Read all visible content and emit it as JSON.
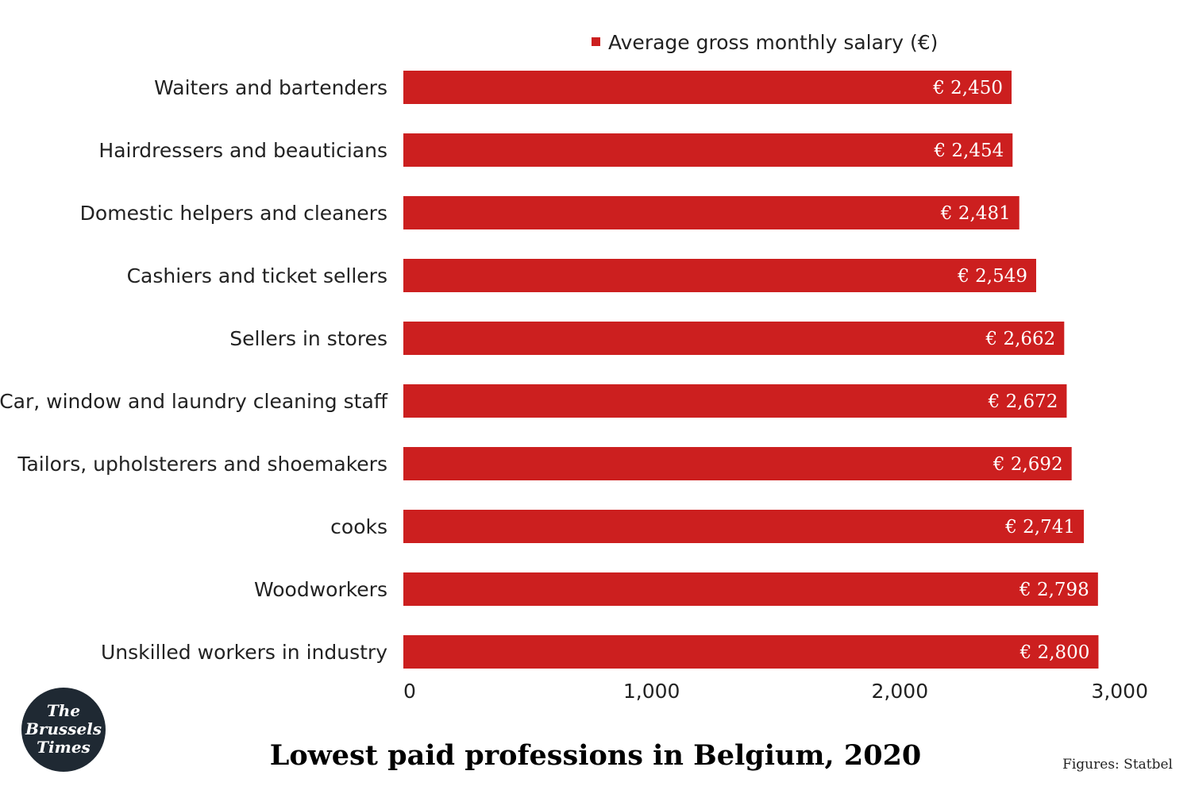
{
  "chart_data": {
    "type": "bar",
    "orientation": "horizontal",
    "title": "Lowest paid professions in Belgium, 2020",
    "source": "Figures: Statbel",
    "categories": [
      "Waiters and bartenders",
      "Hairdressers and beauticians",
      "Domestic helpers and cleaners",
      "Cashiers and ticket sellers",
      "Sellers in stores",
      "Car, window and laundry cleaning staff",
      "Tailors, upholsterers and shoemakers",
      "cooks",
      "Woodworkers",
      "Unskilled workers in industry"
    ],
    "series": [
      {
        "name": "Average gross monthly salary (€)",
        "values": [
          2450,
          2454,
          2481,
          2549,
          2662,
          2672,
          2692,
          2741,
          2798,
          2800
        ],
        "labels": [
          "€ 2,450",
          "€ 2,454",
          "€ 2,481",
          "€ 2,549",
          "€ 2,662",
          "€ 2,672",
          "€ 2,692",
          "€ 2,741",
          "€ 2,798",
          "€ 2,800"
        ],
        "color": "#cc1f1f"
      }
    ],
    "xlim": [
      0,
      3000
    ],
    "xticks": [
      0,
      1000,
      2000,
      3000
    ],
    "xtick_labels": [
      "0",
      "1,000",
      "2,000",
      "3,000"
    ],
    "legend_position": "top",
    "grid": false
  },
  "logo": {
    "lines": [
      "The",
      "Brussels",
      "Times"
    ],
    "background": "#1f2933"
  }
}
